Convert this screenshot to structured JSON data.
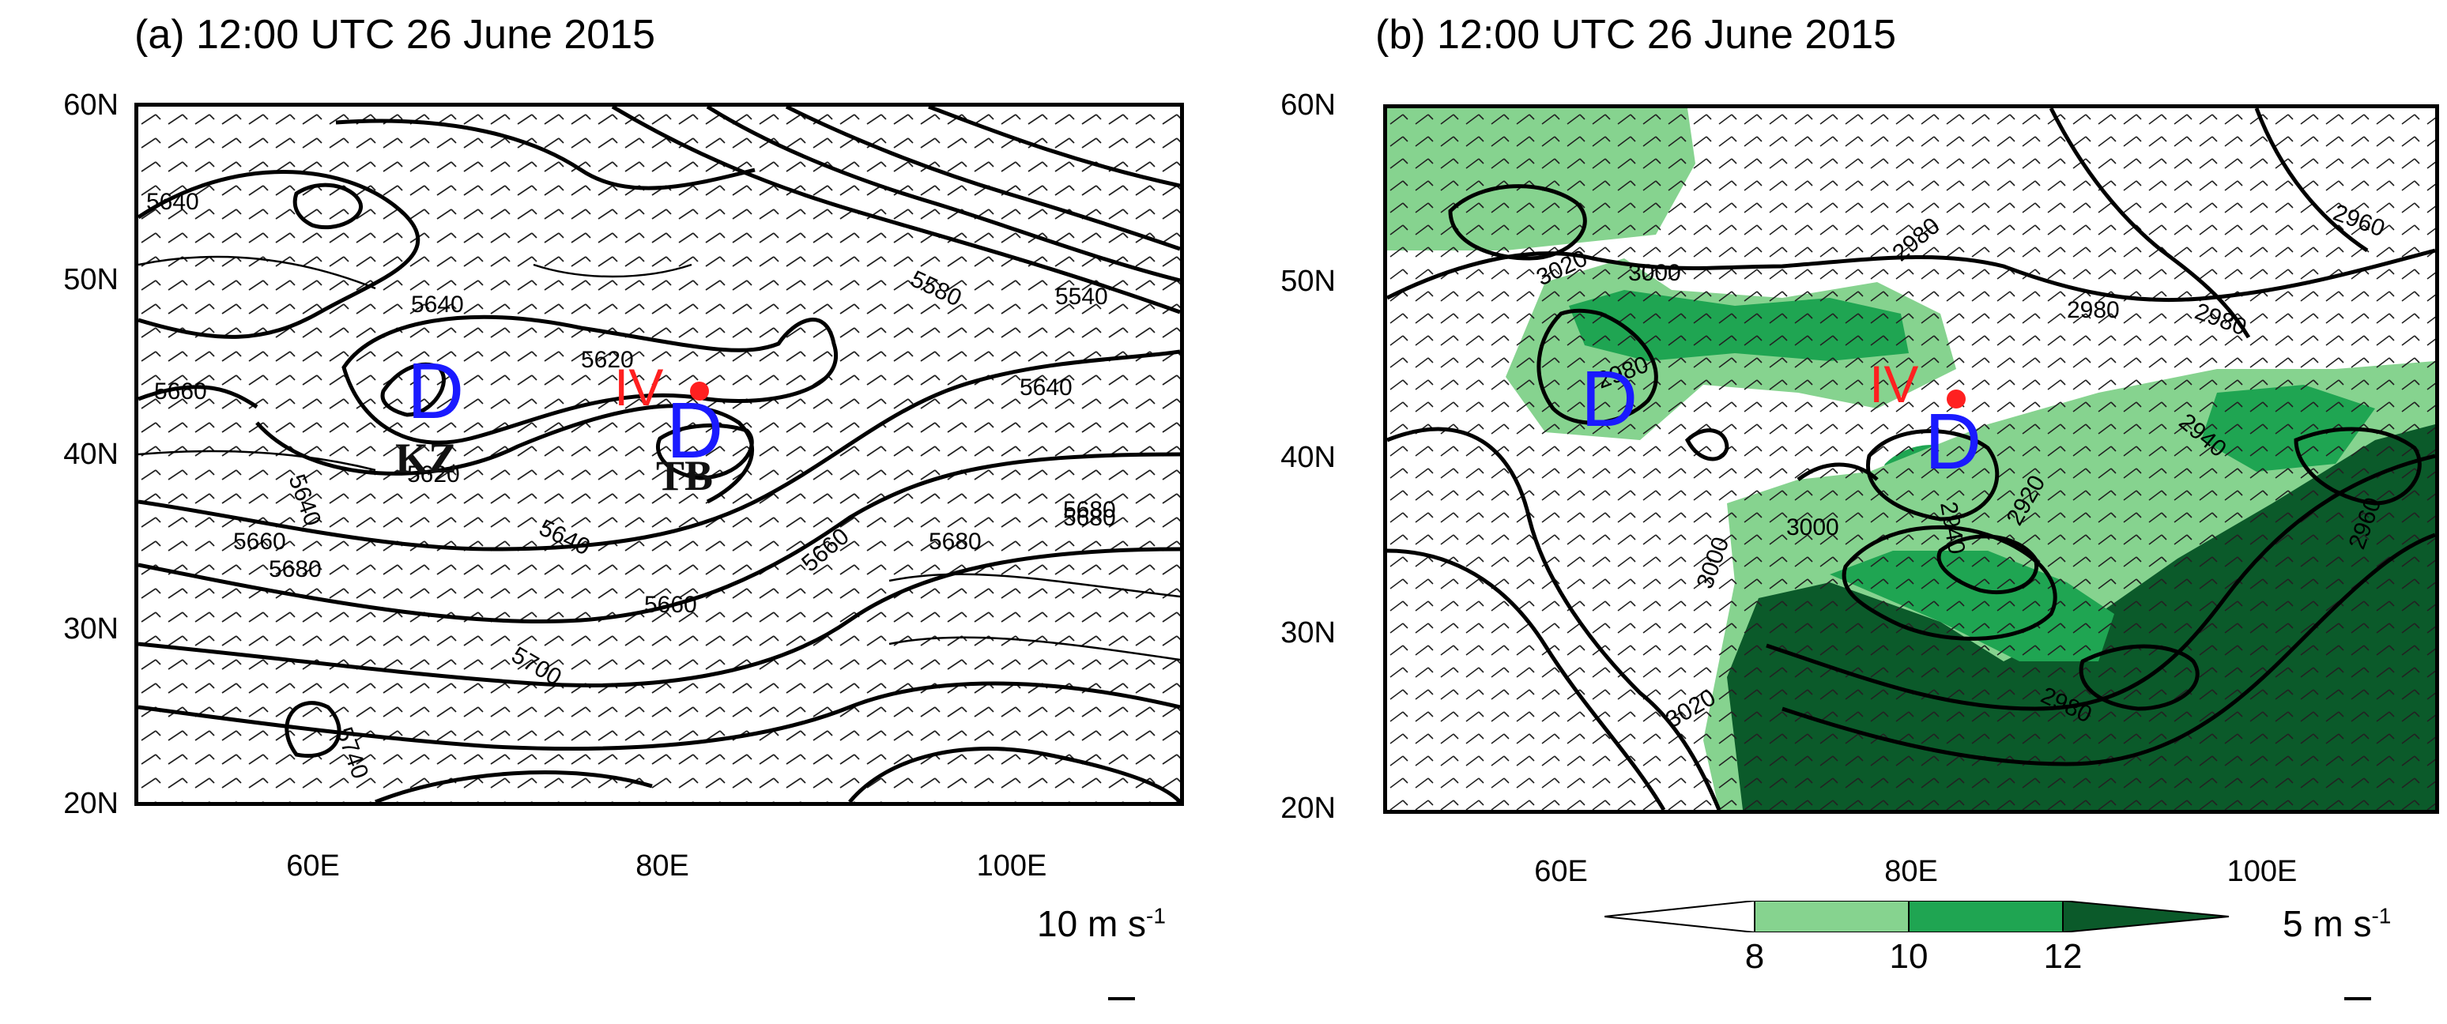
{
  "panels": [
    {
      "title": "(a) 12:00 UTC 26 June 2015",
      "reference_vector": {
        "value": "10 m s",
        "exponent": "-1"
      },
      "contour_labels": [
        "5640",
        "5640",
        "5660",
        "5640",
        "5620",
        "5640",
        "5660",
        "5680",
        "5620",
        "5640",
        "5680",
        "5660",
        "5700",
        "5660",
        "5680",
        "5680",
        "5740",
        "5580",
        "5540"
      ],
      "markers": {
        "d_left": "D",
        "d_right": "D",
        "iv": "IV",
        "kz": "KZ",
        "tb": "TB"
      }
    },
    {
      "title": "(b) 12:00 UTC 26 June 2015",
      "reference_vector": {
        "value": "5 m s",
        "exponent": "-1"
      },
      "contour_labels": [
        "3020",
        "3000",
        "2980",
        "2980",
        "2980",
        "2980",
        "2960",
        "2940",
        "2920",
        "2940",
        "3000",
        "3000",
        "3020",
        "2980",
        "2960"
      ],
      "markers": {
        "d_left": "D",
        "d_right": "D",
        "iv": "IV"
      },
      "colorbar": {
        "labels": [
          "8",
          "10",
          "12"
        ],
        "colors": [
          "#ffffff",
          "#86d38f",
          "#1fa552",
          "#0b5a2a"
        ]
      }
    }
  ],
  "axes": {
    "lat_ticks": [
      "60N",
      "50N",
      "40N",
      "30N",
      "20N"
    ],
    "lon_ticks": [
      "60E",
      "80E",
      "100E"
    ]
  }
}
